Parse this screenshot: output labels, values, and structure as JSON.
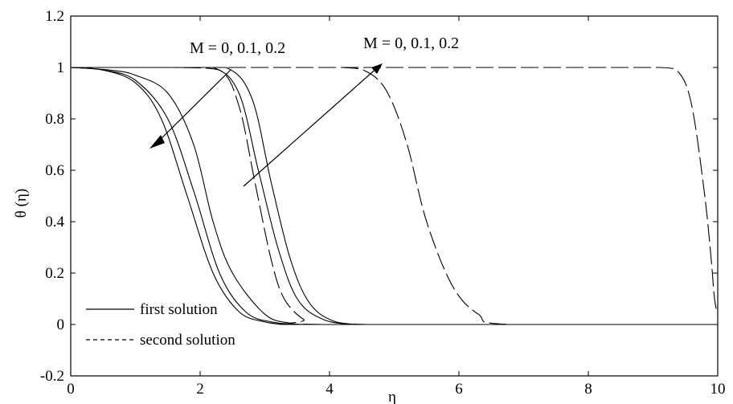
{
  "chart_data": {
    "type": "line",
    "title": "",
    "xlabel": "η",
    "ylabel": "θ (η)",
    "xlim": [
      0,
      10
    ],
    "ylim": [
      -0.2,
      1.2
    ],
    "xticks": [
      0,
      2,
      4,
      6,
      8,
      10
    ],
    "yticks": [
      -0.2,
      0,
      0.2,
      0.4,
      0.6,
      0.8,
      1,
      1.2
    ],
    "grid": false,
    "legend_placement": "bottom-left",
    "legend": [
      {
        "label": "first solution",
        "style": "solid"
      },
      {
        "label": "second solution",
        "style": "dashed"
      }
    ],
    "annotations": [
      {
        "text": "M = 0, 0.1, 0.2",
        "for": "first solution"
      },
      {
        "text": "M = 0, 0.1, 0.2",
        "for": "second solution"
      }
    ],
    "series": [
      {
        "style": "solid",
        "M": 0,
        "x": [
          0,
          0.5,
          1,
          1.4,
          1.8,
          2.2,
          2.6,
          3.0,
          3.4,
          4.0,
          10
        ],
        "y": [
          1,
          0.99,
          0.94,
          0.8,
          0.5,
          0.2,
          0.05,
          0.01,
          0,
          0,
          0
        ]
      },
      {
        "style": "solid",
        "M": 0.1,
        "x": [
          0,
          0.5,
          1,
          1.5,
          1.9,
          2.3,
          2.7,
          3.1,
          3.6,
          4.0,
          10
        ],
        "y": [
          1,
          0.99,
          0.95,
          0.8,
          0.52,
          0.2,
          0.05,
          0.01,
          0,
          0,
          0
        ]
      },
      {
        "style": "solid",
        "M": 0.2,
        "x": [
          0,
          0.6,
          1,
          1.5,
          1.9,
          2.2,
          2.5,
          3.0,
          3.4,
          3.8,
          10
        ],
        "y": [
          1,
          0.99,
          0.97,
          0.9,
          0.7,
          0.4,
          0.2,
          0.04,
          0.005,
          0,
          0
        ]
      },
      {
        "style": "solid",
        "M": 0.2,
        "x": [
          0,
          1.5,
          2.2,
          2.6,
          2.9,
          3.2,
          3.5,
          3.9,
          4.4,
          5.0,
          10
        ],
        "y": [
          1,
          1,
          1,
          0.9,
          0.6,
          0.3,
          0.1,
          0.02,
          0,
          0,
          0
        ]
      },
      {
        "style": "solid",
        "M": 0.1,
        "x": [
          0,
          1.7,
          2.4,
          2.8,
          3.1,
          3.4,
          3.7,
          4.1,
          4.6,
          5.0,
          10
        ],
        "y": [
          1,
          1,
          1,
          0.88,
          0.55,
          0.25,
          0.08,
          0.01,
          0,
          0,
          0
        ]
      },
      {
        "style": "dashed",
        "M": 0,
        "x": [
          0,
          1.6,
          2.3,
          2.6,
          2.85,
          3.1,
          3.3,
          3.6,
          3.9,
          10
        ],
        "y": [
          1,
          1,
          0.99,
          0.85,
          0.55,
          0.25,
          0.1,
          0.02,
          0,
          0
        ]
      },
      {
        "style": "dashed",
        "M": 0.1,
        "x": [
          0,
          3.0,
          4.2,
          4.6,
          4.9,
          5.2,
          5.5,
          5.9,
          6.3,
          6.8,
          10
        ],
        "y": [
          1,
          1,
          1,
          0.98,
          0.9,
          0.7,
          0.4,
          0.15,
          0.04,
          0,
          0
        ]
      },
      {
        "style": "dashed",
        "M": 0.2,
        "x": [
          0,
          5.0,
          8.0,
          9.1,
          9.4,
          9.6,
          9.8,
          9.9,
          9.95,
          10.0
        ],
        "y": [
          1,
          1,
          1,
          1,
          0.98,
          0.85,
          0.5,
          0.25,
          0.1,
          0.04
        ]
      }
    ]
  }
}
